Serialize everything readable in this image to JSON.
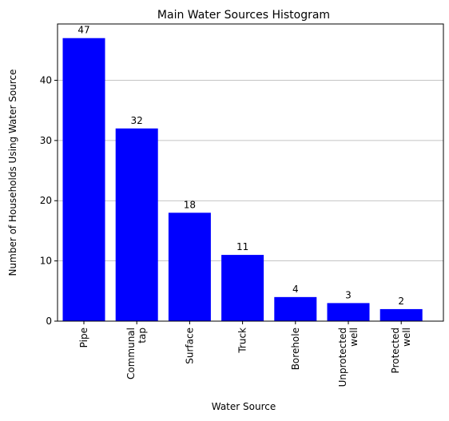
{
  "chart_data": {
    "type": "bar",
    "title": "Main Water Sources Histogram",
    "xlabel": "Water Source",
    "ylabel": "Number of Households Using Water Source",
    "categories": [
      [
        "Pipe"
      ],
      [
        "Communal",
        "tap"
      ],
      [
        "Surface"
      ],
      [
        "Truck"
      ],
      [
        "Borehole"
      ],
      [
        "Unprotected",
        "well"
      ],
      [
        "Protected",
        "well"
      ]
    ],
    "values": [
      47,
      32,
      18,
      11,
      4,
      3,
      2
    ],
    "data_labels": [
      "47",
      "32",
      "18",
      "11",
      "4",
      "3",
      "2"
    ],
    "y_ticks": [
      0,
      10,
      20,
      30,
      40
    ],
    "y_tick_labels": [
      "0",
      "10",
      "20",
      "30",
      "40"
    ],
    "ylim": [
      0,
      49.35
    ],
    "grid": "y-major",
    "bar_color": "#0000ff",
    "grid_color": "#b0b0b0"
  }
}
